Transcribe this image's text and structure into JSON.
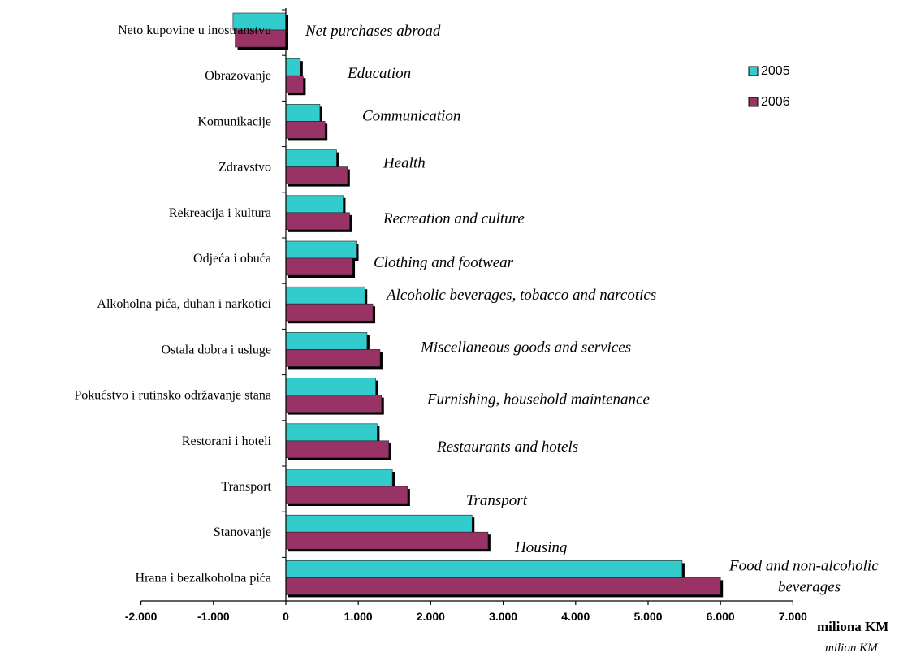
{
  "chart_data": {
    "type": "bar",
    "orientation": "horizontal",
    "categories": [
      "Neto kupovine u inostranstvu",
      "Obrazovanje",
      "Komunikacije",
      "Zdravstvo",
      "Rekreacija i kultura",
      "Odjeća i obuća",
      "Alkoholna pića, duhan i narkotici",
      "Ostala dobra i usluge",
      "Pokućstvo i rutinsko održavanje stana",
      "Restorani i hoteli",
      "Transport",
      "Stanovanje",
      "Hrana i bezalkoholna pića"
    ],
    "categories_en": [
      "Net purchases abroad",
      "Education",
      "Communication",
      "Health",
      "Recreation and culture",
      "Clothing and footwear",
      "Alcoholic beverages, tobacco and narcotics",
      "Miscellaneous goods and services",
      "Furnishing, household maintenance",
      "Restaurants and hotels",
      "Transport",
      "Housing",
      [
        "Food and non-alcoholic",
        "beverages"
      ]
    ],
    "series": [
      {
        "name": "2005",
        "color": "#33cccc",
        "values": [
          -730,
          200,
          470,
          700,
          790,
          970,
          1090,
          1120,
          1240,
          1260,
          1470,
          2570,
          5470
        ]
      },
      {
        "name": "2006",
        "color": "#993366",
        "values": [
          -700,
          240,
          540,
          850,
          880,
          920,
          1200,
          1300,
          1320,
          1420,
          1680,
          2790,
          6000
        ]
      }
    ],
    "xlim": [
      -2000,
      7000
    ],
    "xticks": [
      -2000,
      -1000,
      0,
      1000,
      2000,
      3000,
      4000,
      5000,
      6000,
      7000
    ],
    "xtick_labels": [
      "-2.000",
      "-1.000",
      "0",
      "1.000",
      "2.000",
      "3.000",
      "4.000",
      "5.000",
      "6.000",
      "7.000"
    ],
    "xlabel": "miliona KM",
    "xlabel_en": "milion KM",
    "legend": {
      "position": "top-right",
      "entries": [
        "2005",
        "2006"
      ]
    },
    "grid": false
  }
}
